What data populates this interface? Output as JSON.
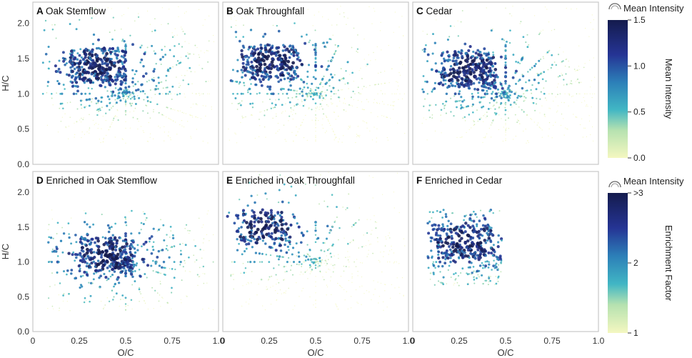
{
  "figure": {
    "x_axis_label": "O/C",
    "y_axis_label": "H/C",
    "x_ticks": [
      "0",
      "0.25",
      "0.5",
      "0.75",
      "1.0"
    ],
    "y_ticks": [
      "0.0",
      "0.5",
      "1.0",
      "1.5",
      "2.0"
    ]
  },
  "colors": {
    "low": "#f4f7c0",
    "mid1": "#b6e2b0",
    "mid2": "#41b6c4",
    "mid3": "#2c7fb8",
    "mid4": "#253494",
    "high": "#141b4d",
    "panel_border": "#c8c8c8",
    "axis_text": "#333333"
  },
  "legends": [
    {
      "size_icon_label": "Mean Intensity",
      "colorbar_title": "Mean Intensity",
      "ticks": [
        "1.5",
        "1.0",
        "0.5",
        "0.0"
      ],
      "tick_values": [
        1.5,
        1.0,
        0.5,
        0.0
      ],
      "range": [
        0,
        1.5
      ]
    },
    {
      "size_icon_label": "Mean Intensity",
      "colorbar_title": "Enrichment Factor",
      "ticks": [
        ">3",
        "2",
        "1"
      ],
      "tick_values": [
        3,
        2,
        1
      ],
      "range": [
        1,
        3
      ]
    }
  ],
  "chart_data": [
    {
      "type": "scatter",
      "panel_letter": "A",
      "title": "Oak Stemflow",
      "xlabel": "",
      "ylabel": "H/C",
      "xlim": [
        0,
        1.0
      ],
      "ylim": [
        0,
        2.3
      ],
      "x_range": [
        0.05,
        0.98
      ],
      "y_range": [
        0.3,
        2.25
      ],
      "dense_center": [
        0.35,
        1.4
      ],
      "color_scale": "Mean Intensity",
      "value_range": [
        0,
        1.5
      ]
    },
    {
      "type": "scatter",
      "panel_letter": "B",
      "title": "Oak Throughfall",
      "xlabel": "",
      "ylabel": "",
      "xlim": [
        0,
        1.0
      ],
      "ylim": [
        0,
        2.3
      ],
      "x_range": [
        0.02,
        0.98
      ],
      "y_range": [
        0.3,
        2.25
      ],
      "dense_center": [
        0.25,
        1.45
      ],
      "color_scale": "Mean Intensity",
      "value_range": [
        0,
        1.5
      ]
    },
    {
      "type": "scatter",
      "panel_letter": "C",
      "title": "Cedar",
      "xlabel": "",
      "ylabel": "",
      "xlim": [
        0,
        1.0
      ],
      "ylim": [
        0,
        2.3
      ],
      "x_range": [
        0.05,
        0.98
      ],
      "y_range": [
        0.3,
        2.25
      ],
      "dense_center": [
        0.3,
        1.35
      ],
      "color_scale": "Mean Intensity",
      "value_range": [
        0,
        1.5
      ]
    },
    {
      "type": "scatter",
      "panel_letter": "D",
      "title": "Enriched in Oak Stemflow",
      "xlabel": "O/C",
      "ylabel": "H/C",
      "xlim": [
        0,
        1.0
      ],
      "ylim": [
        0,
        2.3
      ],
      "x_range": [
        0.08,
        0.98
      ],
      "y_range": [
        0.3,
        1.75
      ],
      "dense_center": [
        0.4,
        1.1
      ],
      "color_scale": "Enrichment Factor",
      "value_range": [
        1,
        3
      ]
    },
    {
      "type": "scatter",
      "panel_letter": "E",
      "title": "Enriched in Oak Throughfall",
      "xlabel": "O/C",
      "ylabel": "",
      "xlim": [
        0,
        1.0
      ],
      "ylim": [
        0,
        2.3
      ],
      "x_range": [
        0.02,
        0.98
      ],
      "y_range": [
        0.3,
        2.3
      ],
      "dense_center": [
        0.22,
        1.5
      ],
      "color_scale": "Enrichment Factor",
      "value_range": [
        1,
        3
      ]
    },
    {
      "type": "scatter",
      "panel_letter": "F",
      "title": "Enriched in Cedar",
      "xlabel": "O/C",
      "ylabel": "",
      "xlim": [
        0,
        1.0
      ],
      "ylim": [
        0,
        2.3
      ],
      "x_range": [
        0.08,
        0.48
      ],
      "y_range": [
        0.65,
        1.75
      ],
      "dense_center": [
        0.28,
        1.3
      ],
      "color_scale": "Enrichment Factor",
      "value_range": [
        1,
        3
      ]
    }
  ]
}
